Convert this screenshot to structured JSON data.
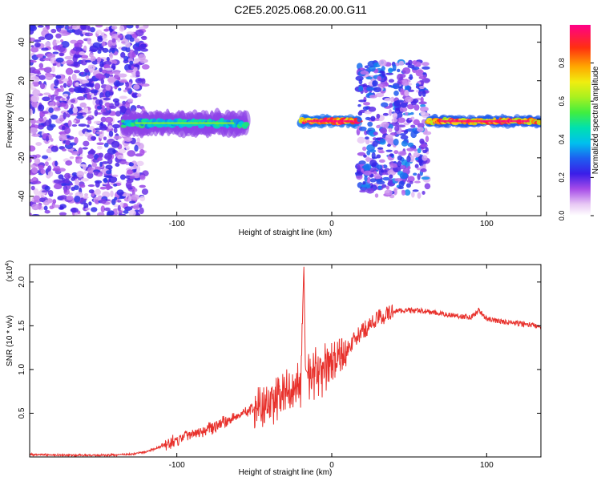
{
  "title": "C2E5.2025.068.20.00.G11",
  "colors": {
    "line": "#e8312c",
    "background": "#ffffff",
    "axis": "#000000"
  },
  "chart_data": [
    {
      "type": "heatmap",
      "xlabel": "Height of straight line (km)",
      "ylabel": "Frequency (Hz)",
      "xlim": [
        -195,
        135
      ],
      "ylim": [
        -50,
        49
      ],
      "xticks": [
        "-100",
        "0",
        "100"
      ],
      "yticks": [
        "-40",
        "-20",
        "0",
        "20",
        "40"
      ],
      "colorbar": {
        "label": "Normalized spectral amplitude",
        "range": [
          0,
          1
        ],
        "ticks": [
          "0.0",
          "0.2",
          "0.4",
          "0.6",
          "0.8"
        ]
      },
      "features": [
        {
          "x_range": [
            -195,
            -120
          ],
          "freq_range": [
            -50,
            49
          ],
          "amplitude": 0.15,
          "description_kind": "broadband noise"
        },
        {
          "x_range": [
            -135,
            -55
          ],
          "freq_center": -2,
          "freq_halfwidth": 4,
          "amplitude": 0.45
        },
        {
          "x_range": [
            -20,
            18
          ],
          "freq_center": -1,
          "freq_halfwidth": 2,
          "amplitude": 0.9
        },
        {
          "x_range": [
            17,
            62
          ],
          "freq_range": [
            -40,
            30
          ],
          "amplitude": 0.2
        },
        {
          "x_range": [
            62,
            135
          ],
          "freq_center": -1,
          "freq_halfwidth": 2,
          "amplitude": 0.85
        }
      ]
    },
    {
      "type": "line",
      "xlabel": "Height of straight line (km)",
      "ylabel": "SNR (10 * v/v)",
      "scale_label": "(x10",
      "scale_exp": "4",
      "xlim": [
        -195,
        135
      ],
      "ylim": [
        0,
        2.2
      ],
      "xticks": [
        "-100",
        "0",
        "100"
      ],
      "yticks": [
        "0.5",
        "1.0",
        "1.5",
        "2.0"
      ],
      "series": [
        {
          "x": [
            -195,
            -170,
            -150,
            -130,
            -120,
            -110,
            -100,
            -95,
            -90,
            -80,
            -70,
            -60,
            -50,
            -40,
            -30,
            -25,
            -20,
            -18,
            -17,
            -15,
            -10,
            0,
            10,
            20,
            30,
            40,
            50,
            60,
            70,
            80,
            90,
            95,
            100,
            110,
            120,
            135
          ],
          "y": [
            0.03,
            0.02,
            0.02,
            0.03,
            0.06,
            0.12,
            0.2,
            0.25,
            0.28,
            0.33,
            0.4,
            0.48,
            0.56,
            0.65,
            0.73,
            0.78,
            0.85,
            2.2,
            1.0,
            0.95,
            0.98,
            1.05,
            1.25,
            1.45,
            1.6,
            1.67,
            1.68,
            1.67,
            1.64,
            1.62,
            1.6,
            1.68,
            1.58,
            1.55,
            1.53,
            1.5
          ]
        }
      ]
    }
  ]
}
